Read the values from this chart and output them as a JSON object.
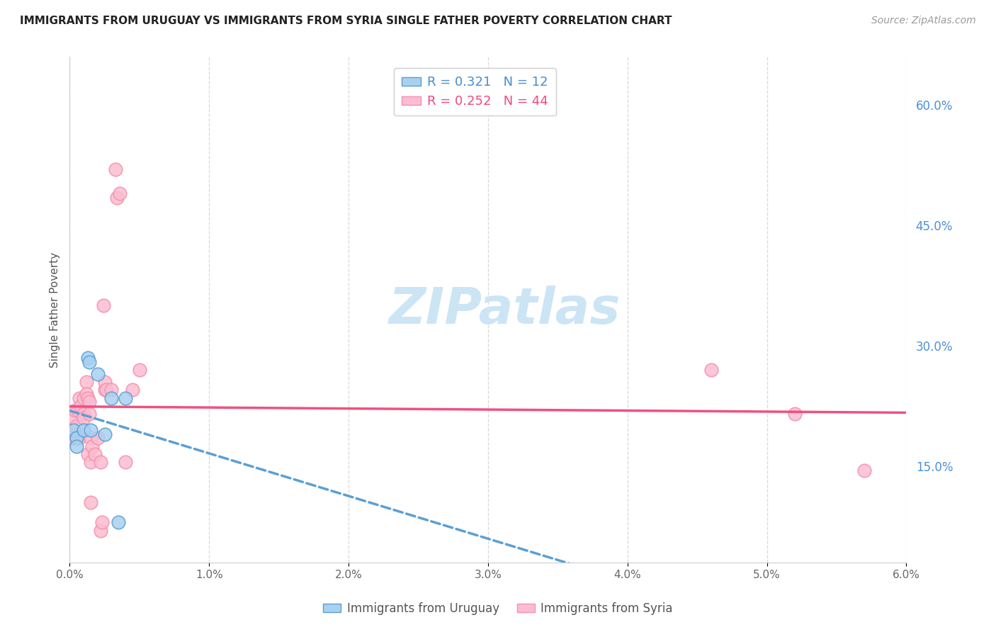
{
  "title": "IMMIGRANTS FROM URUGUAY VS IMMIGRANTS FROM SYRIA SINGLE FATHER POVERTY CORRELATION CHART",
  "source": "Source: ZipAtlas.com",
  "ylabel": "Single Father Poverty",
  "ylabel_right_ticks": [
    "15.0%",
    "30.0%",
    "45.0%",
    "60.0%"
  ],
  "ylabel_right_vals": [
    0.15,
    0.3,
    0.45,
    0.6
  ],
  "legend1_label": "R = 0.321   N = 12",
  "legend2_label": "R = 0.252   N = 44",
  "watermark": "ZIPatlas",
  "xlim": [
    0.0,
    0.06
  ],
  "ylim": [
    0.03,
    0.66
  ],
  "uruguay_points": [
    [
      0.0003,
      0.195
    ],
    [
      0.0005,
      0.185
    ],
    [
      0.0005,
      0.175
    ],
    [
      0.001,
      0.195
    ],
    [
      0.0013,
      0.285
    ],
    [
      0.0014,
      0.28
    ],
    [
      0.0015,
      0.195
    ],
    [
      0.002,
      0.265
    ],
    [
      0.0025,
      0.19
    ],
    [
      0.003,
      0.235
    ],
    [
      0.0035,
      0.08
    ],
    [
      0.004,
      0.235
    ]
  ],
  "syria_points": [
    [
      0.0001,
      0.185
    ],
    [
      0.0002,
      0.195
    ],
    [
      0.0002,
      0.19
    ],
    [
      0.0003,
      0.185
    ],
    [
      0.0003,
      0.21
    ],
    [
      0.0004,
      0.22
    ],
    [
      0.0005,
      0.2
    ],
    [
      0.0005,
      0.185
    ],
    [
      0.0006,
      0.22
    ],
    [
      0.0007,
      0.235
    ],
    [
      0.0007,
      0.185
    ],
    [
      0.0008,
      0.225
    ],
    [
      0.001,
      0.215
    ],
    [
      0.001,
      0.235
    ],
    [
      0.001,
      0.21
    ],
    [
      0.0012,
      0.255
    ],
    [
      0.0012,
      0.24
    ],
    [
      0.0013,
      0.235
    ],
    [
      0.0013,
      0.165
    ],
    [
      0.0014,
      0.23
    ],
    [
      0.0014,
      0.215
    ],
    [
      0.0015,
      0.155
    ],
    [
      0.0015,
      0.185
    ],
    [
      0.0015,
      0.105
    ],
    [
      0.0016,
      0.175
    ],
    [
      0.0018,
      0.165
    ],
    [
      0.002,
      0.185
    ],
    [
      0.0022,
      0.155
    ],
    [
      0.0022,
      0.07
    ],
    [
      0.0023,
      0.08
    ],
    [
      0.0024,
      0.35
    ],
    [
      0.0025,
      0.245
    ],
    [
      0.0025,
      0.255
    ],
    [
      0.0026,
      0.245
    ],
    [
      0.003,
      0.245
    ],
    [
      0.0033,
      0.52
    ],
    [
      0.0034,
      0.485
    ],
    [
      0.0036,
      0.49
    ],
    [
      0.004,
      0.155
    ],
    [
      0.0045,
      0.245
    ],
    [
      0.005,
      0.27
    ],
    [
      0.046,
      0.27
    ],
    [
      0.052,
      0.215
    ],
    [
      0.057,
      0.145
    ]
  ],
  "uruguay_color": "#a8d1f0",
  "uruguay_edge_color": "#5b9fd4",
  "syria_color": "#fbbdd1",
  "syria_edge_color": "#f490b0",
  "line_uruguay_color": "#5b9fd4",
  "line_syria_color": "#f05080",
  "background_color": "#ffffff",
  "grid_color": "#d8d8d8",
  "watermark_color": "#cce5f5"
}
